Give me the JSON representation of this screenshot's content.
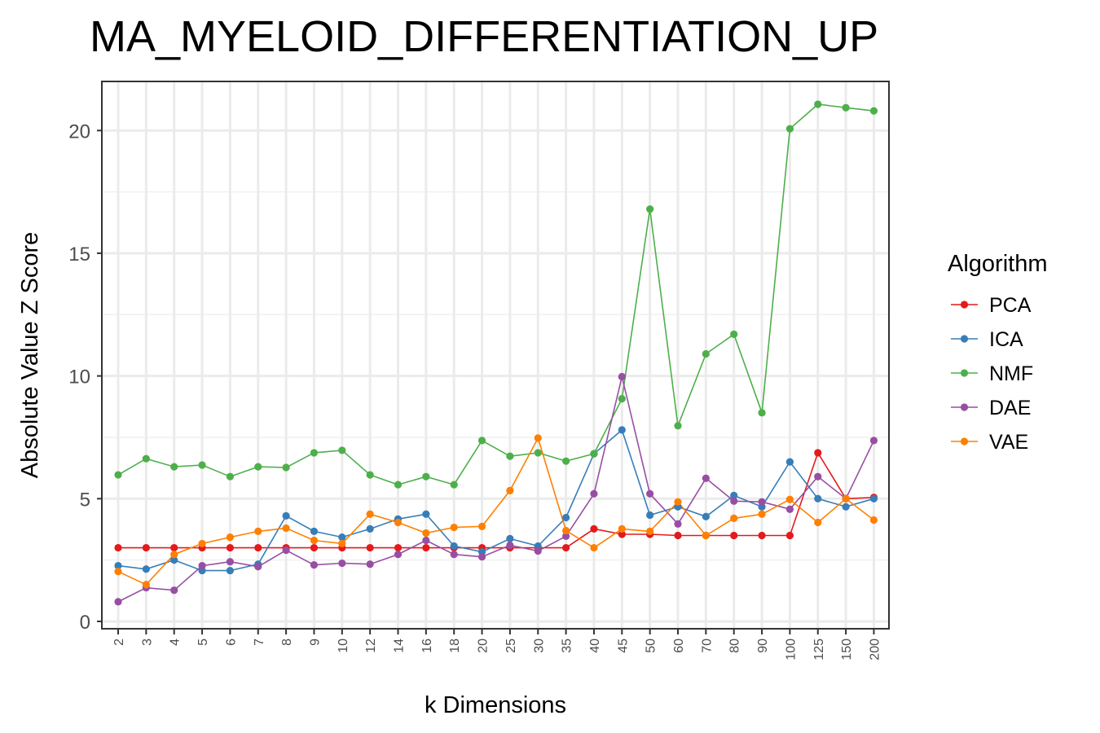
{
  "chart_data": {
    "type": "line",
    "title": "MA_MYELOID_DIFFERENTIATION_UP",
    "xlabel": "k Dimensions",
    "ylabel": "Absolute Value Z Score",
    "categories": [
      "2",
      "3",
      "4",
      "5",
      "6",
      "7",
      "8",
      "9",
      "10",
      "12",
      "14",
      "16",
      "18",
      "20",
      "25",
      "30",
      "35",
      "40",
      "45",
      "50",
      "60",
      "70",
      "80",
      "90",
      "100",
      "125",
      "150",
      "200"
    ],
    "yticks": [
      0,
      5,
      10,
      15,
      20
    ],
    "ytick_labels": [
      "0",
      "5",
      "10",
      "15",
      "20"
    ],
    "ylim": [
      -0.3,
      22.0
    ],
    "grid": true,
    "legend": {
      "title": "Algorithm",
      "placement": "right"
    },
    "series": [
      {
        "name": "PCA",
        "color": "#e41a1c",
        "values": [
          3.0,
          3.0,
          3.0,
          3.0,
          3.0,
          3.0,
          3.0,
          3.0,
          3.0,
          3.0,
          3.0,
          3.0,
          3.0,
          3.0,
          3.0,
          3.0,
          3.0,
          3.77,
          3.55,
          3.55,
          3.5,
          3.5,
          3.5,
          3.5,
          3.5,
          6.87,
          5.0,
          5.05
        ]
      },
      {
        "name": "ICA",
        "color": "#377eb8",
        "values": [
          2.27,
          2.13,
          2.5,
          2.07,
          2.07,
          2.33,
          4.3,
          3.67,
          3.43,
          3.77,
          4.17,
          4.37,
          3.07,
          2.83,
          3.37,
          3.07,
          4.23,
          6.83,
          7.8,
          4.33,
          4.67,
          4.27,
          5.13,
          4.67,
          6.5,
          5.0,
          4.67,
          5.0
        ]
      },
      {
        "name": "NMF",
        "color": "#4daf4a",
        "values": [
          5.97,
          6.63,
          6.3,
          6.37,
          5.9,
          6.3,
          6.27,
          6.87,
          6.97,
          5.97,
          5.57,
          5.9,
          5.57,
          7.37,
          6.73,
          6.87,
          6.53,
          6.83,
          9.07,
          16.8,
          7.97,
          10.9,
          11.7,
          8.5,
          20.07,
          21.07,
          20.93,
          20.8
        ]
      },
      {
        "name": "DAE",
        "color": "#984ea3",
        "values": [
          0.8,
          1.37,
          1.27,
          2.27,
          2.43,
          2.23,
          2.9,
          2.3,
          2.37,
          2.33,
          2.73,
          3.3,
          2.73,
          2.63,
          3.1,
          2.87,
          3.47,
          5.2,
          9.97,
          5.2,
          3.97,
          5.83,
          4.9,
          4.87,
          4.57,
          5.9,
          5.0,
          7.37
        ]
      },
      {
        "name": "VAE",
        "color": "#ff7f00",
        "values": [
          2.03,
          1.5,
          2.73,
          3.17,
          3.43,
          3.67,
          3.8,
          3.3,
          3.17,
          4.37,
          4.03,
          3.6,
          3.83,
          3.87,
          5.33,
          7.47,
          3.7,
          3.0,
          3.77,
          3.67,
          4.87,
          3.5,
          4.2,
          4.37,
          4.97,
          4.03,
          5.0,
          4.13
        ]
      }
    ]
  }
}
